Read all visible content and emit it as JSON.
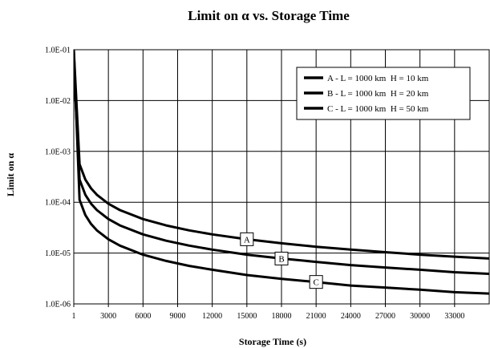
{
  "chart_data": {
    "type": "line",
    "title": "Limit on α vs. Storage Time",
    "xlabel": "Storage Time (s)",
    "ylabel": "Limit on α",
    "x_scale": "linear",
    "y_scale": "log",
    "xlim": [
      1,
      36000
    ],
    "ylim": [
      1e-06,
      0.1
    ],
    "x_ticks": [
      1,
      3000,
      6000,
      9000,
      12000,
      15000,
      18000,
      21000,
      24000,
      27000,
      30000,
      33000
    ],
    "x_tick_labels": [
      "1",
      "3000",
      "6000",
      "9000",
      "12000",
      "15000",
      "18000",
      "21000",
      "24000",
      "27000",
      "30000",
      "33000"
    ],
    "y_ticks": [
      1e-06,
      1e-05,
      0.0001,
      0.001,
      0.01,
      0.1
    ],
    "y_tick_labels": [
      "1.0E-06",
      "1.0E-05",
      "1.0E-04",
      "1.0E-03",
      "1.0E-02",
      "1.0E-01"
    ],
    "grid": true,
    "legend_position": "top-right",
    "series": [
      {
        "name": "A - L = 1000 km  H = 10 km",
        "marker": "A",
        "marker_x": 15000,
        "x": [
          1,
          500,
          1000,
          1500,
          2000,
          3000,
          4000,
          6000,
          8000,
          10000,
          12000,
          15000,
          18000,
          21000,
          24000,
          27000,
          30000,
          33000,
          36000
        ],
        "y": [
          0.1,
          0.00056,
          0.00028,
          0.000187,
          0.00014,
          9.33e-05,
          7e-05,
          4.67e-05,
          3.5e-05,
          2.8e-05,
          2.33e-05,
          1.87e-05,
          1.56e-05,
          1.33e-05,
          1.17e-05,
          1.04e-05,
          9.3e-06,
          8.5e-06,
          7.8e-06
        ]
      },
      {
        "name": "B - L = 1000 km  H = 20 km",
        "marker": "B",
        "marker_x": 18000,
        "x": [
          1,
          500,
          1000,
          1500,
          2000,
          3000,
          4000,
          6000,
          8000,
          10000,
          12000,
          15000,
          18000,
          21000,
          24000,
          27000,
          30000,
          33000,
          36000
        ],
        "y": [
          0.05,
          0.00028,
          0.00014,
          9.33e-05,
          7e-05,
          4.67e-05,
          3.5e-05,
          2.33e-05,
          1.75e-05,
          1.4e-05,
          1.17e-05,
          9.3e-06,
          7.8e-06,
          6.7e-06,
          5.8e-06,
          5.2e-06,
          4.7e-06,
          4.2e-06,
          3.9e-06
        ]
      },
      {
        "name": "C - L = 1000 km  H = 50 km",
        "marker": "C",
        "marker_x": 21000,
        "x": [
          1,
          500,
          1000,
          1500,
          2000,
          3000,
          4000,
          6000,
          8000,
          10000,
          12000,
          15000,
          18000,
          21000,
          24000,
          27000,
          30000,
          33000,
          36000
        ],
        "y": [
          0.1,
          0.000112,
          5.6e-05,
          3.73e-05,
          2.8e-05,
          1.87e-05,
          1.4e-05,
          9.3e-06,
          7e-06,
          5.6e-06,
          4.7e-06,
          3.7e-06,
          3.1e-06,
          2.7e-06,
          2.3e-06,
          2.1e-06,
          1.9e-06,
          1.7e-06,
          1.6e-06
        ]
      }
    ]
  }
}
